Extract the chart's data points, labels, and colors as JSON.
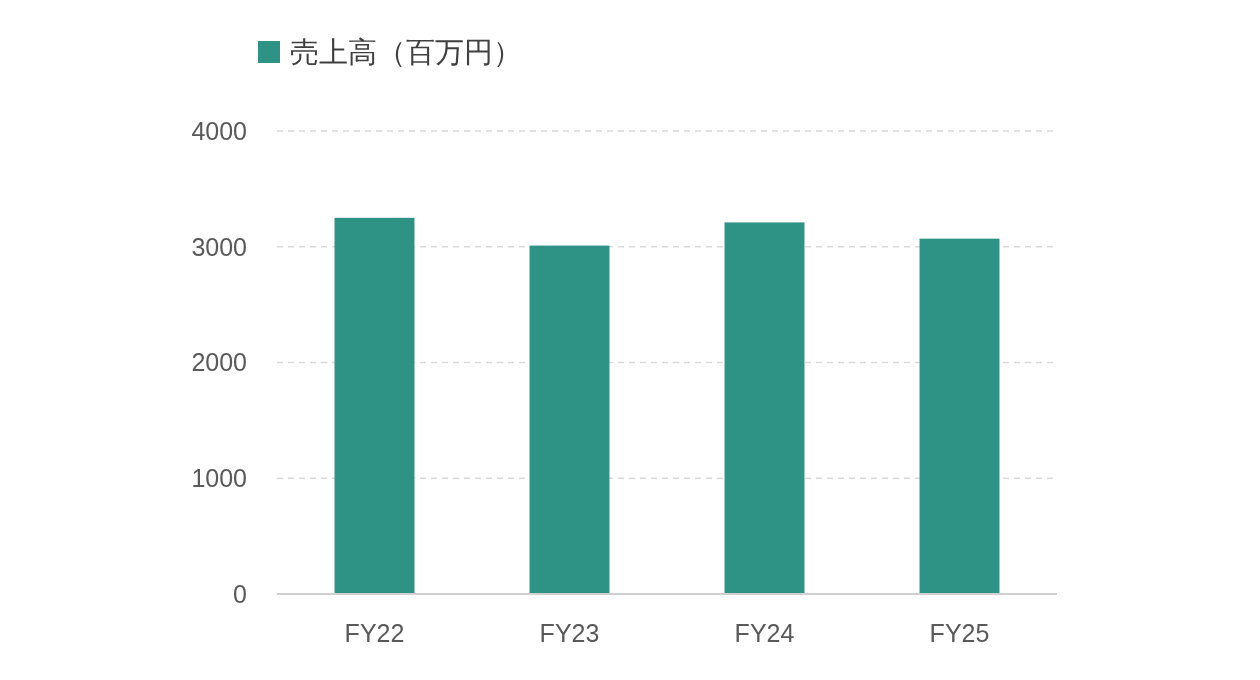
{
  "chart_data": {
    "type": "bar",
    "categories": [
      "FY22",
      "FY23",
      "FY24",
      "FY25"
    ],
    "series": [
      {
        "name": "売上高（百万円）",
        "color": "#2e9384",
        "values": [
          3250,
          3010,
          3210,
          3070
        ]
      }
    ],
    "ylim": [
      0,
      4000
    ],
    "yticks": [
      0,
      1000,
      2000,
      3000,
      4000
    ],
    "grid": "y",
    "legend": "top left"
  }
}
